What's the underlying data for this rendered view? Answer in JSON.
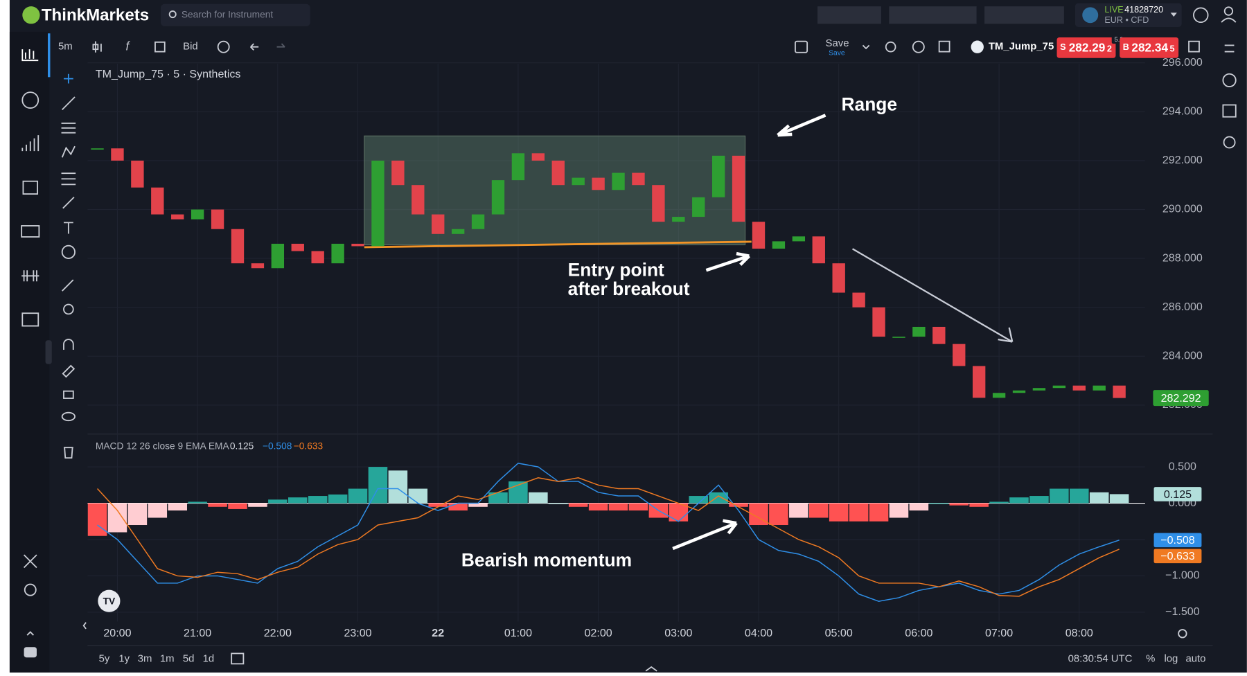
{
  "header": {
    "logo": "ThinkMarkets",
    "search_placeholder": "Search for Instrument",
    "account": {
      "mode": "LIVE",
      "number": "41828720",
      "type": "EUR • CFD"
    }
  },
  "toolbar": {
    "interval": "5m",
    "price_type": "Bid",
    "save": "Save",
    "save_status": "Save",
    "symbol": "TM_Jump_75",
    "sell": {
      "side": "S",
      "price": "282.29",
      "pip": "2"
    },
    "spread": "5.3",
    "buy": {
      "side": "B",
      "price": "282.34",
      "pip": "5"
    }
  },
  "chart_data": [
    {
      "type": "candlestick",
      "title": "TM_Jump_75 · 5 · Synthetics",
      "categories": [
        null,
        "20:00",
        null,
        null,
        null,
        "21:00",
        null,
        null,
        null,
        "22:00",
        null,
        null,
        null,
        "23:00",
        null,
        null,
        null,
        "22",
        null,
        null,
        null,
        "01:00",
        null,
        null,
        null,
        "02:00",
        null,
        null,
        null,
        "03:00",
        null,
        null,
        null,
        "04:00",
        null,
        null,
        null,
        "05:00",
        null,
        null,
        null,
        "06:00",
        null,
        null,
        null,
        "07:00",
        null,
        null,
        null,
        "08:00",
        null,
        null
      ],
      "values": [
        292.5,
        292.0,
        290.9,
        289.8,
        289.6,
        290.0,
        289.2,
        287.8,
        287.6,
        288.6,
        288.3,
        287.8,
        288.6,
        288.5,
        292.0,
        291.0,
        289.8,
        289.0,
        289.2,
        289.8,
        291.2,
        292.3,
        292.0,
        291.0,
        291.3,
        290.8,
        291.5,
        291.0,
        289.5,
        289.7,
        290.5,
        292.2,
        289.5,
        288.4,
        288.7,
        288.9,
        287.8,
        286.6,
        286.0,
        284.8,
        284.8,
        285.2,
        284.5,
        283.6,
        282.3,
        282.5,
        282.6,
        282.7,
        282.8,
        282.6,
        282.8,
        282.292
      ],
      "last_value_label": "282.292",
      "up_color": "#2e9f32",
      "down_color": "#e2434b",
      "ylim": [
        280.85,
        296
      ],
      "yticks": [
        {
          "value": 296,
          "label": "296.000"
        },
        {
          "value": 294,
          "label": "294.000"
        },
        {
          "value": 292,
          "label": "292.000"
        },
        {
          "value": 290,
          "label": "290.000"
        },
        {
          "value": 288,
          "label": "288.000"
        },
        {
          "value": 286,
          "label": "286.000"
        },
        {
          "value": 284,
          "label": "284.000"
        },
        {
          "value": 282,
          "label": "282.000"
        }
      ],
      "grid": true,
      "annotations": [
        "Range",
        "Entry point",
        "after breakout"
      ]
    },
    {
      "type": "macd",
      "title": "MACD 12 26 close 9 EMA EMA",
      "histogram": [
        -0.45,
        -0.4,
        -0.3,
        -0.2,
        -0.1,
        0.02,
        -0.05,
        -0.08,
        -0.05,
        0.05,
        0.08,
        0.1,
        0.12,
        0.2,
        0.5,
        0.45,
        0.2,
        -0.05,
        -0.1,
        -0.05,
        0.15,
        0.3,
        0.15,
        0,
        -0.05,
        -0.1,
        -0.1,
        -0.1,
        -0.2,
        -0.25,
        0.1,
        0.15,
        -0.05,
        -0.3,
        -0.3,
        -0.2,
        -0.2,
        -0.25,
        -0.25,
        -0.25,
        -0.2,
        -0.1,
        0,
        -0.03,
        -0.05,
        0.02,
        0.08,
        0.1,
        0.2,
        0.2,
        0.15,
        0.125
      ],
      "macd": [
        -0.3,
        -0.5,
        -0.8,
        -1.1,
        -1.1,
        -1.0,
        -1.0,
        -1.05,
        -1.1,
        -0.9,
        -0.8,
        -0.6,
        -0.45,
        -0.3,
        0.2,
        0.2,
        0,
        -0.1,
        0,
        0,
        0.3,
        0.55,
        0.5,
        0.3,
        0.3,
        0.15,
        0.1,
        0.1,
        -0.1,
        -0.25,
        0,
        0.25,
        -0.1,
        -0.5,
        -0.65,
        -0.7,
        -0.8,
        -1.0,
        -1.25,
        -1.35,
        -1.3,
        -1.2,
        -1.15,
        -1.1,
        -1.2,
        -1.25,
        -1.2,
        -1.05,
        -0.85,
        -0.7,
        -0.6,
        -0.508
      ],
      "signal": [
        0.2,
        -0.1,
        -0.5,
        -0.9,
        -1.0,
        -1.02,
        -0.95,
        -0.97,
        -1.05,
        -0.95,
        -0.88,
        -0.7,
        -0.57,
        -0.5,
        -0.3,
        -0.25,
        -0.2,
        -0.05,
        0.1,
        0.05,
        0.15,
        0.25,
        0.35,
        0.3,
        0.35,
        0.25,
        0.2,
        0.2,
        0.1,
        0,
        -0.1,
        0.1,
        -0.05,
        -0.2,
        -0.35,
        -0.5,
        -0.6,
        -0.75,
        -1.0,
        -1.1,
        -1.1,
        -1.1,
        -1.15,
        -1.07,
        -1.15,
        -1.27,
        -1.28,
        -1.15,
        -1.05,
        -0.9,
        -0.75,
        -0.633
      ],
      "last_value_labels": [
        "0.125",
        "−0.508",
        "−0.633"
      ],
      "macd_color": "#2f8fe8",
      "signal_color": "#f07a22",
      "hist_colors": [
        "#26a69a",
        "#b2dfdb",
        "#ff5252",
        "#ffcdd2"
      ],
      "ylim": [
        -1.63,
        0.93
      ],
      "yticks": [
        {
          "value": 0.5,
          "label": "0.500"
        },
        {
          "value": 0,
          "label": "0.000"
        },
        {
          "value": -0.5,
          "label": "−0.500"
        },
        {
          "value": -1,
          "label": "−1.000"
        },
        {
          "value": -1.5,
          "label": "−1.500"
        }
      ],
      "annotations": [
        "Bearish momentum"
      ]
    }
  ],
  "footer": {
    "ranges": [
      "5y",
      "1y",
      "3m",
      "1m",
      "5d",
      "1d"
    ],
    "clock": "08:30:54 UTC",
    "percent": "%",
    "log": "log",
    "auto": "auto"
  }
}
